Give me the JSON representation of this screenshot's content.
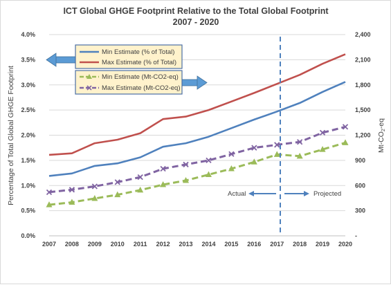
{
  "chart_data": {
    "type": "line",
    "title_line1": "ICT Global GHGE Footprint Relative to the Total Global Footprint",
    "title_line2": "2007 - 2020",
    "ylabel_left": "Percentage of Total Global GHGE Footprint",
    "ylabel_right": "Mt-CO",
    "ylabel_right_sub": "2",
    "ylabel_right_tail": "-eq",
    "categories": [
      "2007",
      "2008",
      "2009",
      "2010",
      "2011",
      "2012",
      "2013",
      "2014",
      "2015",
      "2016",
      "2017",
      "2018",
      "2019",
      "2020"
    ],
    "y_left_ticks": [
      "0.0%",
      "0.5%",
      "1.0%",
      "1.5%",
      "2.0%",
      "2.5%",
      "3.0%",
      "3.5%",
      "4.0%"
    ],
    "y_left_range": [
      0,
      4
    ],
    "y_right_ticks": [
      "-",
      "300",
      "600",
      "900",
      "1,200",
      "1,500",
      "1,800",
      "2,100",
      "2,400"
    ],
    "y_right_range": [
      0,
      2400
    ],
    "series": [
      {
        "name": "Min Estimate (% of Total)",
        "axis": "left",
        "color": "#4f81bd",
        "style": "solid",
        "marker": "none",
        "values": [
          1.19,
          1.24,
          1.39,
          1.44,
          1.56,
          1.77,
          1.84,
          1.97,
          2.14,
          2.31,
          2.47,
          2.64,
          2.86,
          3.06
        ]
      },
      {
        "name": "Max Estimate (% of Total)",
        "axis": "left",
        "color": "#c0504d",
        "style": "solid",
        "marker": "none",
        "values": [
          1.61,
          1.64,
          1.84,
          1.91,
          2.04,
          2.32,
          2.37,
          2.5,
          2.67,
          2.84,
          3.02,
          3.2,
          3.42,
          3.61
        ]
      },
      {
        "name": "Min Estimate (Mt-CO2-eq)",
        "axis": "right",
        "color": "#9bbb59",
        "style": "dashed",
        "marker": "triangle",
        "values": [
          370,
          400,
          445,
          490,
          545,
          610,
          660,
          730,
          800,
          880,
          970,
          950,
          1030,
          1110
        ]
      },
      {
        "name": "Max Estimate (Mt-CO2-eq)",
        "axis": "right",
        "color": "#8064a2",
        "style": "dashed",
        "marker": "x",
        "values": [
          520,
          550,
          590,
          640,
          700,
          800,
          850,
          900,
          975,
          1050,
          1085,
          1120,
          1230,
          1300
        ]
      }
    ],
    "annotations": {
      "actual": "Actual",
      "projected": "Projected"
    },
    "divider_between": [
      "2017",
      "2018"
    ],
    "grid": true,
    "legend_placement": "top-left"
  }
}
